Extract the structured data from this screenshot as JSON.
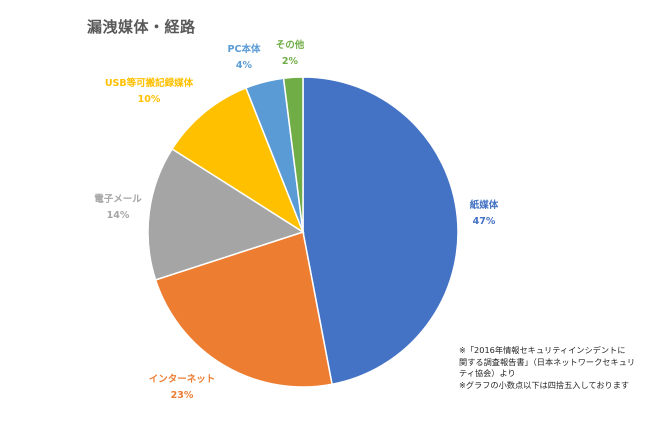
{
  "chart_data": {
    "type": "pie",
    "title": "漏洩媒体・経路",
    "slices": [
      {
        "label": "紙媒体",
        "value": 47,
        "value_label": "47%",
        "color": "#4472C4"
      },
      {
        "label": "インターネット",
        "value": 23,
        "value_label": "23%",
        "color": "#ED7D31"
      },
      {
        "label": "電子メール",
        "value": 14,
        "value_label": "14%",
        "color": "#A5A5A5"
      },
      {
        "label": "USB等可搬記録媒体",
        "value": 10,
        "value_label": "10%",
        "color": "#FFC000"
      },
      {
        "label": "PC本体",
        "value": 4,
        "value_label": "4%",
        "color": "#5B9BD5"
      },
      {
        "label": "その他",
        "value": 2,
        "value_label": "2%",
        "color": "#70AD47"
      }
    ],
    "start_angle_deg": 0,
    "direction": "clockwise"
  },
  "notes": {
    "line1": "※「2016年情報セキュリティインシデントに",
    "line2": "関する調査報告書」（日本ネットワークセキュリ",
    "line3": "ティ協会）より",
    "line4": "※グラフの小数点以下は四捨五入しております"
  }
}
